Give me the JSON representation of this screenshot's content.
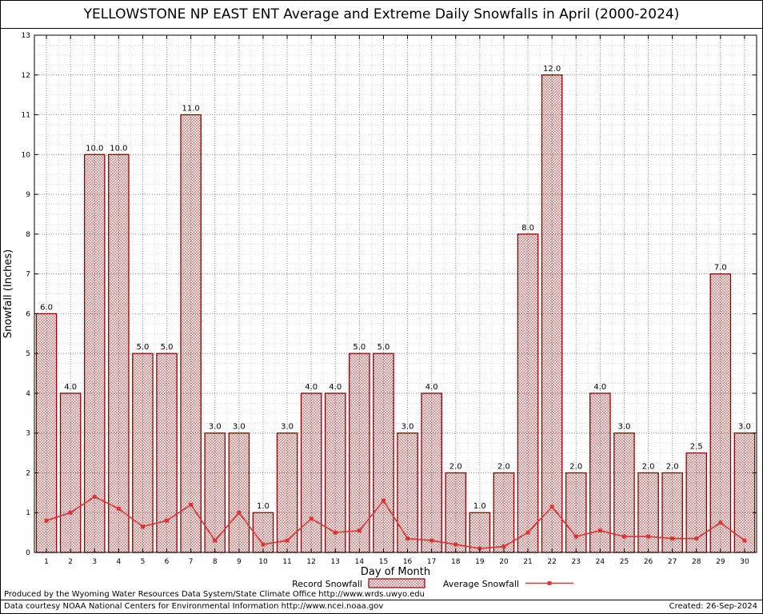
{
  "chart_data": {
    "type": "bar",
    "title": "YELLOWSTONE NP EAST ENT Average and Extreme Daily Snowfalls in April (2000-2024)",
    "xlabel": "Day of Month",
    "ylabel": "Snowfall (Inches)",
    "ylim": [
      0,
      13
    ],
    "y_tick_step": 1,
    "grid": true,
    "legend_position": "bottom",
    "x": [
      1,
      2,
      3,
      4,
      5,
      6,
      7,
      8,
      9,
      10,
      11,
      12,
      13,
      14,
      15,
      16,
      17,
      18,
      19,
      20,
      21,
      22,
      23,
      24,
      25,
      26,
      27,
      28,
      29,
      30
    ],
    "series": [
      {
        "name": "Record Snowfall",
        "type": "bar",
        "color": "#8b0000",
        "values": [
          6.0,
          4.0,
          10.0,
          10.0,
          5.0,
          5.0,
          11.0,
          3.0,
          3.0,
          1.0,
          3.0,
          4.0,
          4.0,
          5.0,
          5.0,
          3.0,
          4.0,
          2.0,
          1.0,
          2.0,
          8.0,
          12.0,
          2.0,
          4.0,
          3.0,
          2.0,
          2.0,
          2.5,
          7.0,
          3.0
        ]
      },
      {
        "name": "Average Snowfall",
        "type": "line",
        "color": "#e03030",
        "values": [
          0.8,
          1.0,
          1.4,
          1.1,
          0.65,
          0.8,
          1.2,
          0.3,
          1.0,
          0.2,
          0.3,
          0.85,
          0.5,
          0.55,
          1.3,
          0.35,
          0.3,
          0.2,
          0.1,
          0.15,
          0.5,
          1.15,
          0.4,
          0.55,
          0.4,
          0.4,
          0.35,
          0.35,
          0.75,
          0.3
        ]
      }
    ],
    "bar_labels": [
      "6.0",
      "4.0",
      "10.0",
      "10.0",
      "5.0",
      "5.0",
      "11.0",
      "3.0",
      "3.0",
      "1.0",
      "3.0",
      "4.0",
      "4.0",
      "5.0",
      "5.0",
      "3.0",
      "4.0",
      "2.0",
      "1.0",
      "2.0",
      "8.0",
      "12.0",
      "2.0",
      "4.0",
      "3.0",
      "2.0",
      "2.0",
      "2.5",
      "7.0",
      "3.0"
    ]
  },
  "footer": {
    "line1": "Produced by the Wyoming Water Resources Data System/State Climate Office http://www.wrds.uwyo.edu",
    "line2": "Data courtesy NOAA National Centers for Environmental Information http://www.ncei.noaa.gov",
    "created": "Created: 26-Sep-2024"
  }
}
